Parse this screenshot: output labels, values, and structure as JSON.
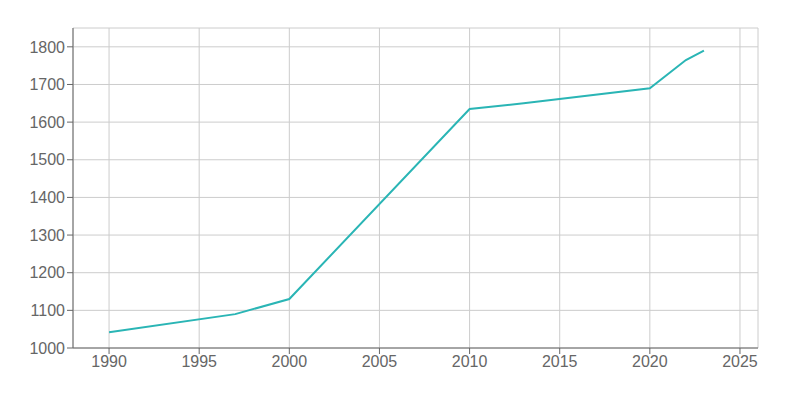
{
  "chart_data": {
    "type": "line",
    "x": [
      1990,
      1997,
      2000,
      2010,
      2013,
      2020,
      2022,
      2023
    ],
    "values": [
      1042,
      1090,
      1130,
      1635,
      1650,
      1690,
      1765,
      1790
    ],
    "color": "#2ab5b5",
    "xlim": [
      1988,
      2026
    ],
    "ylim": [
      1000,
      1850
    ],
    "xticks": [
      1990,
      1995,
      2000,
      2005,
      2010,
      2015,
      2020,
      2025
    ],
    "yticks": [
      1000,
      1100,
      1200,
      1300,
      1400,
      1500,
      1600,
      1700,
      1800
    ],
    "grid": true
  }
}
